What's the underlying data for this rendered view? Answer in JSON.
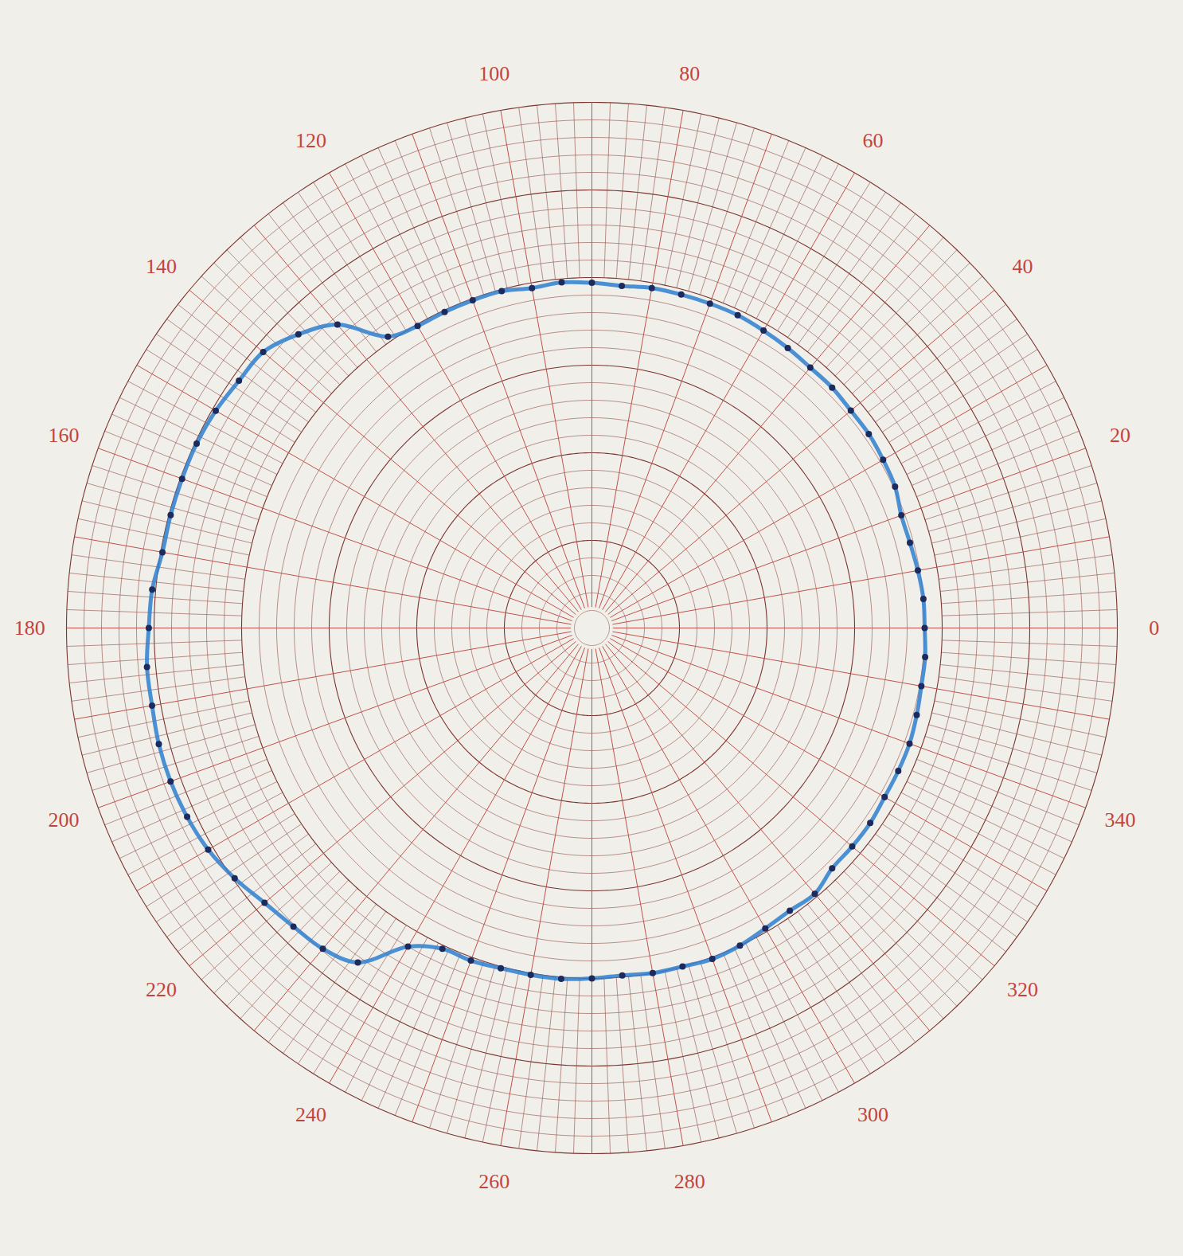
{
  "chart_data": {
    "type": "polar",
    "x": [
      0,
      5,
      10,
      15,
      20,
      25,
      30,
      35,
      40,
      45,
      50,
      55,
      60,
      65,
      70,
      75,
      80,
      85,
      90,
      95,
      100,
      105,
      110,
      115,
      120,
      125,
      130,
      135,
      140,
      145,
      150,
      155,
      160,
      165,
      170,
      175,
      180,
      185,
      190,
      195,
      200,
      205,
      210,
      215,
      220,
      225,
      230,
      235,
      240,
      245,
      250,
      255,
      260,
      265,
      270,
      275,
      280,
      285,
      290,
      295,
      300,
      305,
      310,
      315,
      320,
      325,
      330,
      335,
      340,
      345,
      350,
      355
    ],
    "values": [
      19.0,
      19.0,
      18.9,
      18.8,
      18.8,
      19.1,
      19.2,
      19.3,
      19.3,
      19.4,
      19.4,
      19.5,
      19.6,
      19.7,
      19.7,
      19.7,
      19.7,
      19.6,
      19.7,
      19.8,
      19.7,
      19.9,
      19.9,
      19.9,
      19.9,
      20.3,
      22.6,
      23.7,
      24.5,
      24.6,
      24.8,
      24.9,
      24.9,
      24.9,
      24.9,
      25.2,
      25.3,
      25.5,
      25.5,
      25.6,
      25.6,
      25.5,
      25.3,
      24.9,
      24.4,
      24.1,
      23.9,
      23.3,
      21.0,
      20.2,
      20.2,
      20.1,
      20.1,
      20.1,
      20.0,
      19.9,
      20.0,
      20.0,
      20.1,
      20.0,
      19.8,
      19.7,
      19.8,
      19.4,
      19.4,
      19.4,
      19.3,
      19.3,
      19.3,
      19.2,
      19.1,
      19.1
    ],
    "xticks": [
      0,
      20,
      40,
      60,
      80,
      100,
      120,
      140,
      160,
      180,
      200,
      220,
      240,
      260,
      280,
      300,
      320,
      340
    ],
    "ylim": [
      0,
      30
    ],
    "yticks": [
      0,
      1,
      2,
      3,
      4,
      5,
      6,
      7,
      8,
      9,
      10,
      11,
      12,
      13,
      14,
      15,
      16,
      17,
      18,
      19,
      20,
      21,
      22,
      23,
      24,
      25,
      26,
      27,
      28,
      29,
      30
    ],
    "tick_labels": "x",
    "grid": true,
    "color": "#2f7fd0",
    "marker": "circle"
  }
}
